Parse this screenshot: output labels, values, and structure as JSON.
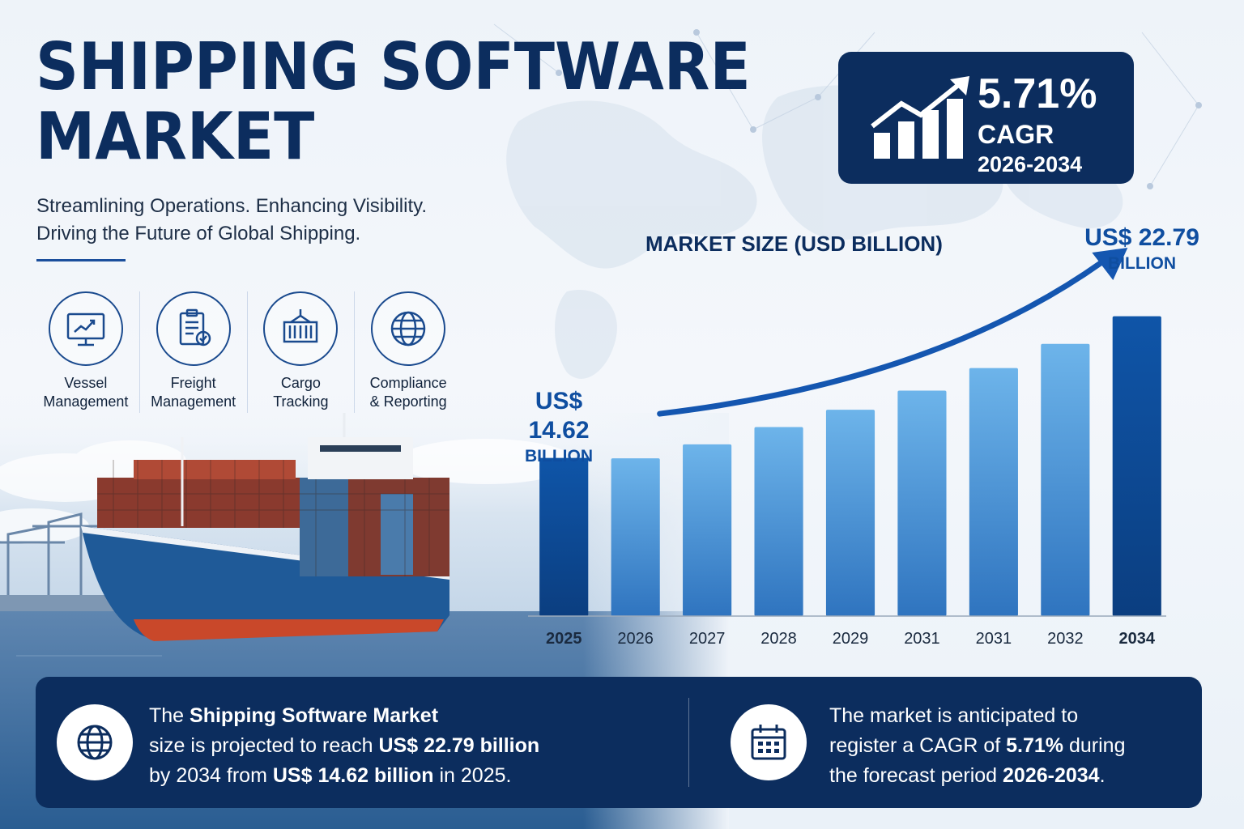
{
  "title": {
    "line1": "SHIPPING SOFTWARE",
    "line2": "MARKET"
  },
  "subtitle": {
    "line1": "Streamlining Operations. Enhancing Visibility.",
    "line2": "Driving the Future of Global Shipping."
  },
  "features": [
    {
      "icon": "monitor-chart-icon",
      "line1": "Vessel",
      "line2": "Management"
    },
    {
      "icon": "clipboard-check-icon",
      "line1": "Freight",
      "line2": "Management"
    },
    {
      "icon": "container-icon",
      "line1": "Cargo",
      "line2": "Tracking"
    },
    {
      "icon": "globe-icon",
      "line1": "Compliance",
      "line2": "& Reporting"
    }
  ],
  "cagr": {
    "value": "5.71%",
    "label": "CAGR",
    "period": "2026-2034"
  },
  "chart_data": {
    "type": "bar",
    "title": "MARKET SIZE (USD BILLION)",
    "categories": [
      "2025",
      "2026",
      "2027",
      "2028",
      "2029",
      "2031",
      "2031",
      "2032",
      "2034"
    ],
    "values": [
      14.62,
      14.6,
      15.4,
      16.4,
      17.4,
      18.5,
      19.8,
      21.2,
      22.79
    ],
    "highlighted": [
      "2025",
      "2034"
    ],
    "ylim": [
      5.5,
      24.5
    ],
    "grid": false,
    "annotations": {
      "start": {
        "value": "US$ 14.62",
        "unit": "BILLION"
      },
      "end": {
        "value": "US$ 22.79",
        "unit": "BILLION"
      }
    },
    "colors": {
      "dark": "#0d4a9a",
      "light": "#5aa6e0",
      "arrow": "#1456b0"
    }
  },
  "banner": {
    "left": {
      "icon": "globe-icon",
      "l1a": "The ",
      "l1b": "Shipping Software Market",
      "l2a": "size is projected to reach ",
      "l2b": "US$ 22.79 billion",
      "l3a": "by 2034 from ",
      "l3b": "US$ 14.62 billion",
      "l3c": " in 2025."
    },
    "right": {
      "icon": "calendar-icon",
      "l1a": "The market is anticipated to",
      "l2a": "register a CAGR of ",
      "l2b": "5.71%",
      "l2c": " during",
      "l3a": "the forecast period ",
      "l3b": "2026-2034",
      "l3c": "."
    }
  }
}
